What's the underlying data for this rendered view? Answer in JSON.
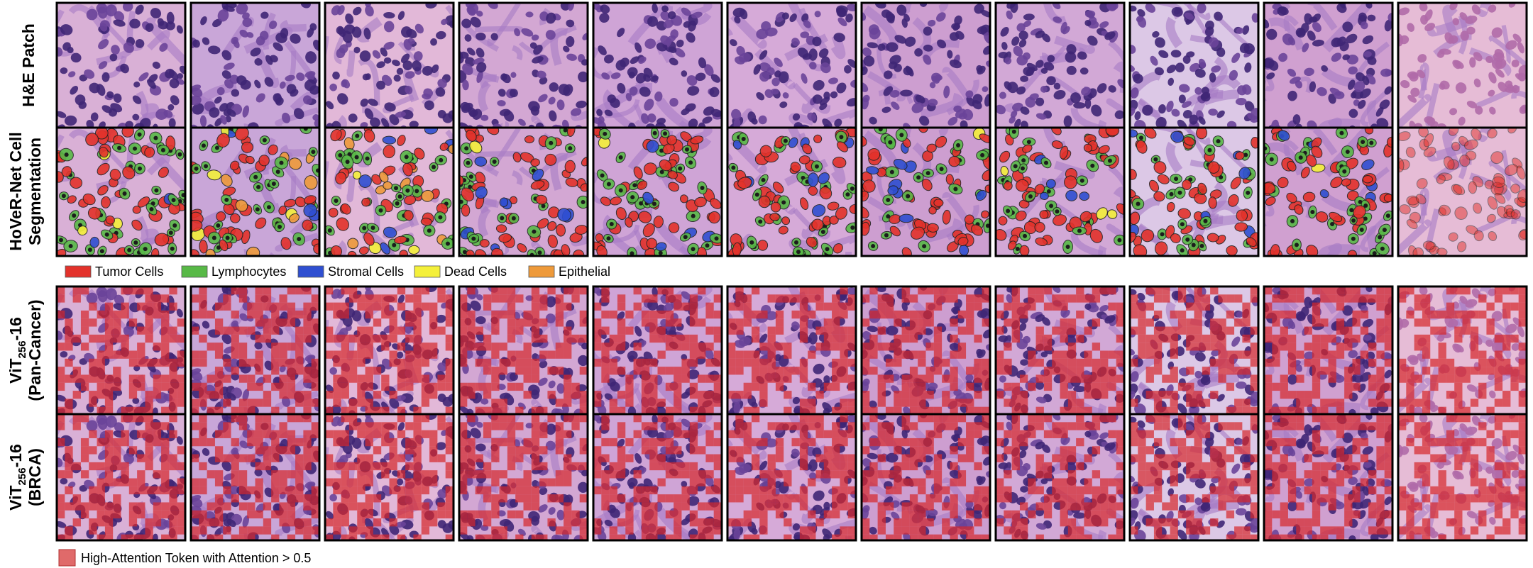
{
  "rows": [
    {
      "label": [
        "H&E Patch"
      ]
    },
    {
      "label": [
        "HoVeR-Net Cell",
        "Segmentation"
      ]
    },
    {
      "model": "ViT",
      "subscript": "256",
      "suffix": "-16",
      "dataset": "(Pan-Cancer)"
    },
    {
      "model": "ViT",
      "subscript": "256",
      "suffix": "-16",
      "dataset": "(BRCA)"
    }
  ],
  "cell_legend": [
    {
      "name": "Tumor Cells",
      "color": "#e3322b"
    },
    {
      "name": "Lymphocytes",
      "color": "#58b947"
    },
    {
      "name": "Stromal Cells",
      "color": "#2f4fd1"
    },
    {
      "name": "Dead Cells",
      "color": "#f4f03a"
    },
    {
      "name": "Epithelial",
      "color": "#ee9a3a"
    }
  ],
  "attention_legend": {
    "name": "High-Attention Token with Attention > 0.5",
    "color": "#e06a6a"
  }
}
